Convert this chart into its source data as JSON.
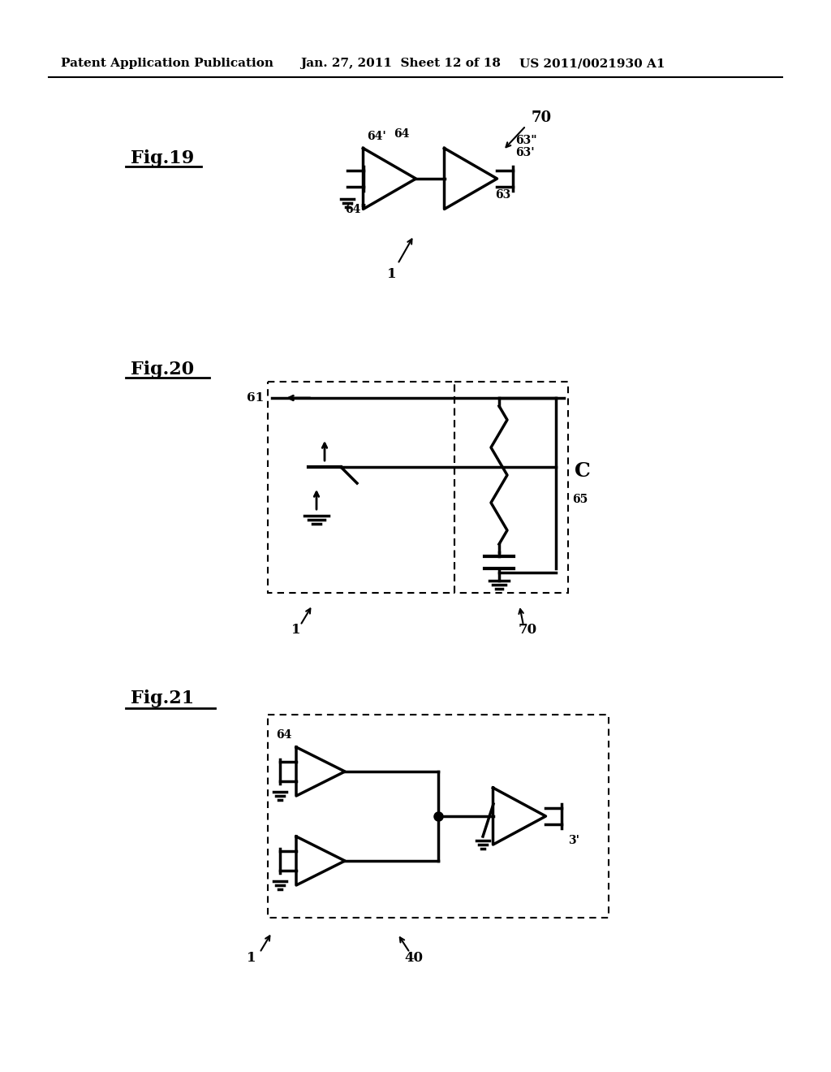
{
  "title_left": "Patent Application Publication",
  "title_mid": "Jan. 27, 2011  Sheet 12 of 18",
  "title_right": "US 2011/0021930 A1",
  "bg_color": "#ffffff",
  "text_color": "#000000",
  "fig19_label": "Fig.19",
  "fig20_label": "Fig.20",
  "fig21_label": "Fig.21"
}
